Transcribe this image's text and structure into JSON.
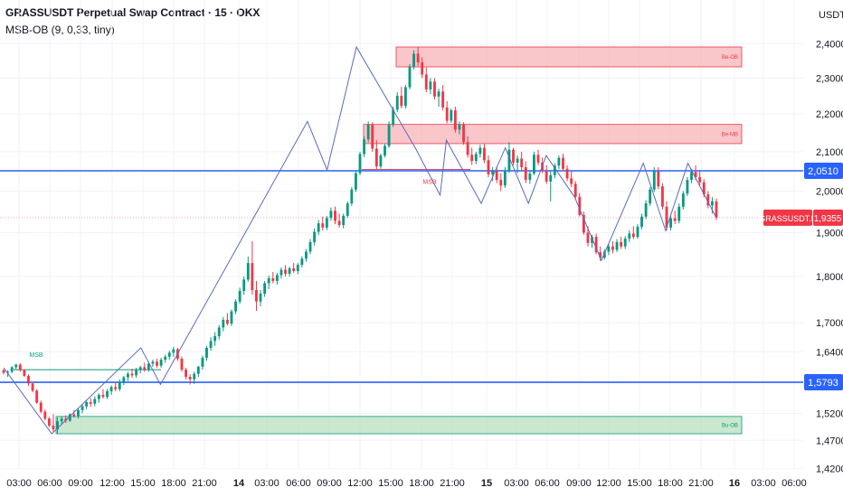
{
  "header": {
    "title": "GRASSUSDT Perpetual Swap Contract · 15 · OKX",
    "indicator": "MSB-OB (9, 0,33, tiny)"
  },
  "currency": "USDT",
  "colors": {
    "bull": "#089981",
    "bear": "#f23645",
    "zigzag": "#5b6bbf",
    "level_line": "#2962ff",
    "bear_zone_fill": "#f7b3b8",
    "bull_zone_fill": "#b7e0bd",
    "grid": "#f0f3fa"
  },
  "chart_data": {
    "type": "candlestick",
    "scale": "log",
    "ylim": [
      1.42,
      2.44
    ],
    "y_ticks": [
      "2,4000",
      "2,3000",
      "2,2000",
      "2,1000",
      "2,0000",
      "1,9000",
      "1,8000",
      "1,7000",
      "1,6400",
      "1,5200",
      "1,4700",
      "1,4200"
    ],
    "x_ticks": [
      "03:00",
      "06:00",
      "09:00",
      "12:00",
      "15:00",
      "18:00",
      "21:00",
      "14",
      "03:00",
      "06:00",
      "09:00",
      "12:00",
      "15:00",
      "18:00",
      "21:00",
      "15",
      "03:00",
      "06:00",
      "09:00",
      "12:00",
      "15:00",
      "18:00",
      "21:00",
      "16",
      "03:00",
      "06:00"
    ],
    "x_ticks_bold": [
      "14",
      "15",
      "16"
    ],
    "last_price": {
      "symbol": "GRASSUSDT.P",
      "value": "1,9355"
    },
    "levels": [
      {
        "value": "2,0510",
        "price": 2.051
      },
      {
        "value": "1,5793",
        "price": 1.5793
      }
    ],
    "zones": [
      {
        "label": "Be-OB",
        "top": 2.39,
        "bottom": 2.332,
        "kind": "bear"
      },
      {
        "label": "Be-MB",
        "top": 2.172,
        "bottom": 2.121,
        "kind": "bear"
      },
      {
        "label": "Bu-OB",
        "top": 1.514,
        "bottom": 1.482,
        "kind": "bull"
      }
    ],
    "msb": [
      {
        "label": "MSB",
        "price": 2.054,
        "kind": "bear"
      },
      {
        "label": "MSB",
        "price": 1.604,
        "kind": "bull"
      }
    ],
    "zigzag": [
      [
        0,
        1.608
      ],
      [
        5.4,
        1.482
      ],
      [
        15.4,
        1.648
      ],
      [
        17.6,
        1.575
      ],
      [
        34.1,
        2.18
      ],
      [
        36.3,
        2.053
      ],
      [
        39.6,
        2.39
      ],
      [
        46.2,
        2.11
      ],
      [
        49.0,
        1.99
      ],
      [
        49.7,
        2.13
      ],
      [
        53.6,
        1.97
      ],
      [
        56.3,
        2.11
      ],
      [
        58.9,
        1.97
      ],
      [
        60.9,
        2.09
      ],
      [
        64.1,
        1.985
      ],
      [
        67.1,
        1.836
      ],
      [
        71.8,
        2.07
      ],
      [
        74.3,
        1.905
      ],
      [
        76.8,
        2.07
      ],
      [
        80,
        1.935
      ]
    ],
    "ohlc": [
      [
        1.603,
        1.605,
        1.595,
        1.598
      ],
      [
        1.598,
        1.603,
        1.59,
        1.6
      ],
      [
        1.6,
        1.611,
        1.597,
        1.609
      ],
      [
        1.609,
        1.616,
        1.605,
        1.614
      ],
      [
        1.614,
        1.617,
        1.6,
        1.603
      ],
      [
        1.603,
        1.605,
        1.59,
        1.592
      ],
      [
        1.592,
        1.595,
        1.572,
        1.577
      ],
      [
        1.577,
        1.58,
        1.56,
        1.563
      ],
      [
        1.563,
        1.566,
        1.538,
        1.54
      ],
      [
        1.54,
        1.544,
        1.52,
        1.523
      ],
      [
        1.523,
        1.527,
        1.507,
        1.51
      ],
      [
        1.51,
        1.513,
        1.494,
        1.497
      ],
      [
        1.497,
        1.518,
        1.485,
        1.49
      ],
      [
        1.49,
        1.512,
        1.483,
        1.505
      ],
      [
        1.505,
        1.515,
        1.498,
        1.51
      ],
      [
        1.51,
        1.516,
        1.502,
        1.506
      ],
      [
        1.506,
        1.52,
        1.504,
        1.518
      ],
      [
        1.518,
        1.526,
        1.512,
        1.515
      ],
      [
        1.515,
        1.53,
        1.51,
        1.526
      ],
      [
        1.526,
        1.537,
        1.52,
        1.533
      ],
      [
        1.533,
        1.545,
        1.528,
        1.541
      ],
      [
        1.541,
        1.549,
        1.532,
        1.538
      ],
      [
        1.538,
        1.552,
        1.533,
        1.547
      ],
      [
        1.547,
        1.558,
        1.54,
        1.555
      ],
      [
        1.555,
        1.566,
        1.548,
        1.551
      ],
      [
        1.551,
        1.566,
        1.547,
        1.562
      ],
      [
        1.562,
        1.573,
        1.555,
        1.57
      ],
      [
        1.57,
        1.58,
        1.562,
        1.566
      ],
      [
        1.566,
        1.585,
        1.562,
        1.58
      ],
      [
        1.58,
        1.592,
        1.574,
        1.589
      ],
      [
        1.589,
        1.6,
        1.582,
        1.596
      ],
      [
        1.596,
        1.606,
        1.588,
        1.593
      ],
      [
        1.593,
        1.608,
        1.588,
        1.604
      ],
      [
        1.604,
        1.612,
        1.597,
        1.609
      ],
      [
        1.609,
        1.618,
        1.6,
        1.604
      ],
      [
        1.604,
        1.62,
        1.6,
        1.616
      ],
      [
        1.616,
        1.624,
        1.61,
        1.62
      ],
      [
        1.62,
        1.626,
        1.608,
        1.612
      ],
      [
        1.612,
        1.628,
        1.608,
        1.624
      ],
      [
        1.624,
        1.634,
        1.618,
        1.63
      ],
      [
        1.63,
        1.642,
        1.624,
        1.638
      ],
      [
        1.638,
        1.65,
        1.63,
        1.645
      ],
      [
        1.645,
        1.648,
        1.622,
        1.626
      ],
      [
        1.626,
        1.63,
        1.6,
        1.604
      ],
      [
        1.604,
        1.608,
        1.585,
        1.59
      ],
      [
        1.59,
        1.595,
        1.575,
        1.585
      ],
      [
        1.585,
        1.6,
        1.576,
        1.596
      ],
      [
        1.596,
        1.612,
        1.59,
        1.61
      ],
      [
        1.61,
        1.632,
        1.604,
        1.628
      ],
      [
        1.628,
        1.652,
        1.622,
        1.648
      ],
      [
        1.648,
        1.67,
        1.642,
        1.662
      ],
      [
        1.662,
        1.68,
        1.652,
        1.672
      ],
      [
        1.672,
        1.695,
        1.665,
        1.69
      ],
      [
        1.69,
        1.712,
        1.682,
        1.706
      ],
      [
        1.706,
        1.72,
        1.694,
        1.698
      ],
      [
        1.698,
        1.728,
        1.693,
        1.724
      ],
      [
        1.724,
        1.75,
        1.718,
        1.745
      ],
      [
        1.745,
        1.775,
        1.74,
        1.768
      ],
      [
        1.768,
        1.8,
        1.76,
        1.793
      ],
      [
        1.793,
        1.845,
        1.788,
        1.83
      ],
      [
        1.83,
        1.88,
        1.76,
        1.77
      ],
      [
        1.77,
        1.79,
        1.725,
        1.745
      ],
      [
        1.745,
        1.77,
        1.735,
        1.762
      ],
      [
        1.762,
        1.79,
        1.755,
        1.785
      ],
      [
        1.785,
        1.802,
        1.772,
        1.796
      ],
      [
        1.796,
        1.81,
        1.785,
        1.79
      ],
      [
        1.79,
        1.808,
        1.782,
        1.803
      ],
      [
        1.803,
        1.82,
        1.795,
        1.815
      ],
      [
        1.815,
        1.825,
        1.8,
        1.806
      ],
      [
        1.806,
        1.822,
        1.8,
        1.818
      ],
      [
        1.818,
        1.83,
        1.808,
        1.812
      ],
      [
        1.812,
        1.83,
        1.805,
        1.826
      ],
      [
        1.826,
        1.845,
        1.82,
        1.84
      ],
      [
        1.84,
        1.862,
        1.833,
        1.856
      ],
      [
        1.856,
        1.885,
        1.85,
        1.878
      ],
      [
        1.878,
        1.91,
        1.87,
        1.902
      ],
      [
        1.902,
        1.93,
        1.894,
        1.922
      ],
      [
        1.922,
        1.938,
        1.905,
        1.912
      ],
      [
        1.912,
        1.94,
        1.906,
        1.935
      ],
      [
        1.935,
        1.96,
        1.928,
        1.952
      ],
      [
        1.952,
        1.962,
        1.92,
        1.928
      ],
      [
        1.928,
        1.945,
        1.912,
        1.918
      ],
      [
        1.918,
        1.945,
        1.91,
        1.94
      ],
      [
        1.94,
        1.975,
        1.935,
        1.97
      ],
      [
        1.97,
        2.01,
        1.964,
        2.004
      ],
      [
        2.004,
        2.05,
        1.998,
        2.045
      ],
      [
        2.045,
        2.1,
        2.04,
        2.094
      ],
      [
        2.094,
        2.14,
        2.086,
        2.132
      ],
      [
        2.132,
        2.18,
        2.124,
        2.172
      ],
      [
        2.172,
        2.178,
        2.1,
        2.108
      ],
      [
        2.108,
        2.13,
        2.055,
        2.062
      ],
      [
        2.062,
        2.095,
        2.056,
        2.09
      ],
      [
        2.09,
        2.12,
        2.085,
        2.115
      ],
      [
        2.115,
        2.18,
        2.11,
        2.172
      ],
      [
        2.172,
        2.22,
        2.165,
        2.212
      ],
      [
        2.212,
        2.26,
        2.205,
        2.25
      ],
      [
        2.25,
        2.275,
        2.215,
        2.222
      ],
      [
        2.222,
        2.28,
        2.215,
        2.274
      ],
      [
        2.274,
        2.34,
        2.268,
        2.332
      ],
      [
        2.332,
        2.38,
        2.325,
        2.37
      ],
      [
        2.37,
        2.39,
        2.335,
        2.345
      ],
      [
        2.345,
        2.36,
        2.3,
        2.31
      ],
      [
        2.31,
        2.33,
        2.26,
        2.268
      ],
      [
        2.268,
        2.3,
        2.255,
        2.29
      ],
      [
        2.29,
        2.3,
        2.24,
        2.248
      ],
      [
        2.248,
        2.27,
        2.22,
        2.262
      ],
      [
        2.262,
        2.28,
        2.21,
        2.218
      ],
      [
        2.218,
        2.235,
        2.175,
        2.182
      ],
      [
        2.182,
        2.215,
        2.176,
        2.21
      ],
      [
        2.21,
        2.22,
        2.15,
        2.158
      ],
      [
        2.158,
        2.18,
        2.145,
        2.172
      ],
      [
        2.172,
        2.178,
        2.118,
        2.125
      ],
      [
        2.125,
        2.14,
        2.085,
        2.092
      ],
      [
        2.092,
        2.11,
        2.066,
        2.076
      ],
      [
        2.076,
        2.1,
        2.068,
        2.094
      ],
      [
        2.094,
        2.118,
        2.085,
        2.11
      ],
      [
        2.11,
        2.12,
        2.07,
        2.078
      ],
      [
        2.078,
        2.09,
        2.035,
        2.042
      ],
      [
        2.042,
        2.06,
        2.025,
        2.05
      ],
      [
        2.05,
        2.062,
        2.02,
        2.028
      ],
      [
        2.028,
        2.045,
        2.0,
        2.014
      ],
      [
        2.014,
        2.06,
        2.008,
        2.052
      ],
      [
        2.052,
        2.125,
        2.045,
        2.105
      ],
      [
        2.105,
        2.11,
        2.065,
        2.072
      ],
      [
        2.072,
        2.09,
        2.045,
        2.082
      ],
      [
        2.082,
        2.1,
        2.052,
        2.06
      ],
      [
        2.06,
        2.075,
        2.02,
        2.028
      ],
      [
        2.028,
        2.05,
        2.018,
        2.044
      ],
      [
        2.044,
        2.1,
        2.04,
        2.092
      ],
      [
        2.092,
        2.105,
        2.065,
        2.072
      ],
      [
        2.072,
        2.085,
        2.045,
        2.05
      ],
      [
        2.05,
        2.065,
        2.018,
        2.024
      ],
      [
        2.024,
        2.05,
        1.975,
        2.04
      ],
      [
        2.04,
        2.07,
        2.032,
        2.064
      ],
      [
        2.064,
        2.09,
        2.055,
        2.084
      ],
      [
        2.084,
        2.095,
        2.05,
        2.056
      ],
      [
        2.056,
        2.065,
        2.025,
        2.032
      ],
      [
        2.032,
        2.05,
        2.01,
        2.018
      ],
      [
        2.018,
        2.025,
        1.98,
        1.986
      ],
      [
        1.986,
        1.995,
        1.938,
        1.942
      ],
      [
        1.942,
        1.95,
        1.895,
        1.9
      ],
      [
        1.9,
        1.915,
        1.868,
        1.876
      ],
      [
        1.876,
        1.895,
        1.865,
        1.89
      ],
      [
        1.89,
        1.898,
        1.85,
        1.855
      ],
      [
        1.855,
        1.868,
        1.835,
        1.842
      ],
      [
        1.842,
        1.862,
        1.838,
        1.856
      ],
      [
        1.856,
        1.875,
        1.848,
        1.868
      ],
      [
        1.868,
        1.88,
        1.852,
        1.86
      ],
      [
        1.86,
        1.885,
        1.855,
        1.878
      ],
      [
        1.878,
        1.89,
        1.862,
        1.868
      ],
      [
        1.868,
        1.892,
        1.862,
        1.886
      ],
      [
        1.886,
        1.905,
        1.878,
        1.898
      ],
      [
        1.898,
        1.915,
        1.885,
        1.89
      ],
      [
        1.89,
        1.92,
        1.886,
        1.914
      ],
      [
        1.914,
        1.945,
        1.908,
        1.938
      ],
      [
        1.938,
        1.978,
        1.932,
        1.97
      ],
      [
        1.97,
        2.01,
        1.964,
        2.004
      ],
      [
        2.004,
        2.06,
        1.998,
        2.05
      ],
      [
        2.05,
        2.06,
        2.005,
        2.012
      ],
      [
        2.012,
        2.02,
        1.955,
        1.962
      ],
      [
        1.962,
        1.975,
        1.905,
        1.912
      ],
      [
        1.912,
        1.94,
        1.905,
        1.934
      ],
      [
        1.934,
        1.952,
        1.92,
        1.928
      ],
      [
        1.928,
        1.97,
        1.922,
        1.962
      ],
      [
        1.962,
        2.0,
        1.955,
        1.994
      ],
      [
        1.994,
        2.035,
        1.988,
        2.028
      ],
      [
        2.028,
        2.056,
        2.02,
        2.048
      ],
      [
        2.048,
        2.065,
        2.028,
        2.035
      ],
      [
        2.035,
        2.05,
        2.015,
        2.022
      ],
      [
        2.022,
        2.03,
        1.985,
        1.992
      ],
      [
        1.992,
        2.0,
        1.958,
        1.965
      ],
      [
        1.965,
        1.985,
        1.945,
        1.975
      ],
      [
        1.975,
        1.982,
        1.93,
        1.936
      ]
    ]
  }
}
